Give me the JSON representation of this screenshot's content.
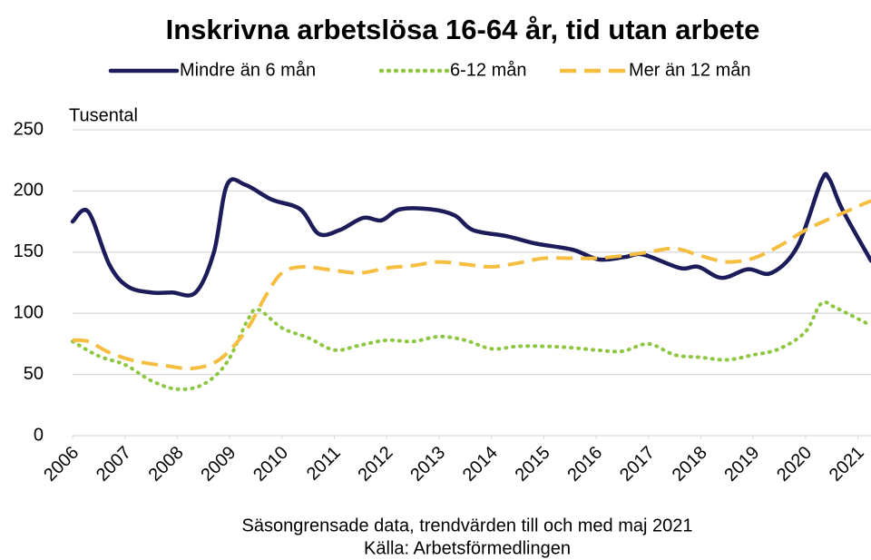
{
  "chart_data": {
    "type": "line",
    "title": "Inskrivna arbetslösa 16-64 år, tid utan arbete",
    "y_label": "Tusental",
    "notes": [
      "Säsongrensade data, trendvärden till och med maj 2021",
      "Källa: Arbetsförmedlingen"
    ],
    "xlim": [
      2006,
      2021.25
    ],
    "xticks": [
      2006,
      2007,
      2008,
      2009,
      2010,
      2011,
      2012,
      2013,
      2014,
      2015,
      2016,
      2017,
      2018,
      2019,
      2020,
      2021
    ],
    "ylim": [
      0,
      250
    ],
    "yticks": [
      0,
      50,
      100,
      150,
      200,
      250
    ],
    "grid": true,
    "legend": "top",
    "series": [
      {
        "name": "Mindre än 6 mån",
        "color": "#1c1c5a",
        "style": "solid",
        "x": [
          2006,
          2006.3,
          2006.7,
          2007.05,
          2007.5,
          2007.9,
          2008.35,
          2008.7,
          2008.95,
          2009.3,
          2009.8,
          2010.35,
          2010.7,
          2011.1,
          2011.55,
          2011.9,
          2012.25,
          2012.85,
          2013.3,
          2013.65,
          2014.3,
          2014.85,
          2015.55,
          2016.05,
          2016.55,
          2016.9,
          2017.6,
          2017.95,
          2018.4,
          2018.9,
          2019.35,
          2019.85,
          2020.3,
          2020.45,
          2020.7,
          2021.25
        ],
        "values": [
          175,
          183,
          140,
          122,
          117,
          117,
          117,
          150,
          205,
          205,
          193,
          185,
          165,
          168,
          178,
          176,
          185,
          185,
          180,
          168,
          163,
          157,
          152,
          144,
          146,
          148,
          137,
          138,
          129,
          136,
          133,
          155,
          208,
          210,
          185,
          143
        ]
      },
      {
        "name": "6-12 mån",
        "color": "#8dc63f",
        "style": "dotted",
        "x": [
          2006,
          2006.5,
          2007,
          2007.5,
          2008,
          2008.5,
          2008.95,
          2009.35,
          2009.55,
          2010,
          2010.5,
          2011,
          2011.5,
          2012,
          2012.5,
          2013,
          2013.5,
          2014,
          2014.5,
          2015,
          2015.5,
          2016,
          2016.5,
          2017,
          2017.5,
          2018,
          2018.5,
          2019,
          2019.5,
          2020,
          2020.3,
          2020.6,
          2021.25
        ],
        "values": [
          77,
          65,
          58,
          45,
          38,
          42,
          60,
          95,
          103,
          88,
          80,
          70,
          74,
          78,
          77,
          81,
          78,
          71,
          73,
          73,
          72,
          70,
          69,
          75,
          66,
          64,
          62,
          66,
          71,
          85,
          108,
          104,
          90
        ]
      },
      {
        "name": "Mer än 12 mån",
        "color": "#f5be41",
        "style": "dashed",
        "x": [
          2006,
          2006.3,
          2006.7,
          2007.2,
          2007.8,
          2008.3,
          2008.8,
          2009.3,
          2009.7,
          2010,
          2010.4,
          2011,
          2011.5,
          2012,
          2012.5,
          2013,
          2013.5,
          2014,
          2014.5,
          2015,
          2015.5,
          2016,
          2016.5,
          2017,
          2017.5,
          2018,
          2018.5,
          2019,
          2019.5,
          2020,
          2020.5,
          2021.25
        ],
        "values": [
          78,
          77,
          68,
          61,
          57,
          55,
          62,
          85,
          115,
          133,
          138,
          135,
          133,
          137,
          139,
          142,
          140,
          138,
          141,
          145,
          145,
          145,
          147,
          150,
          153,
          147,
          142,
          145,
          155,
          168,
          178,
          192
        ]
      }
    ]
  }
}
